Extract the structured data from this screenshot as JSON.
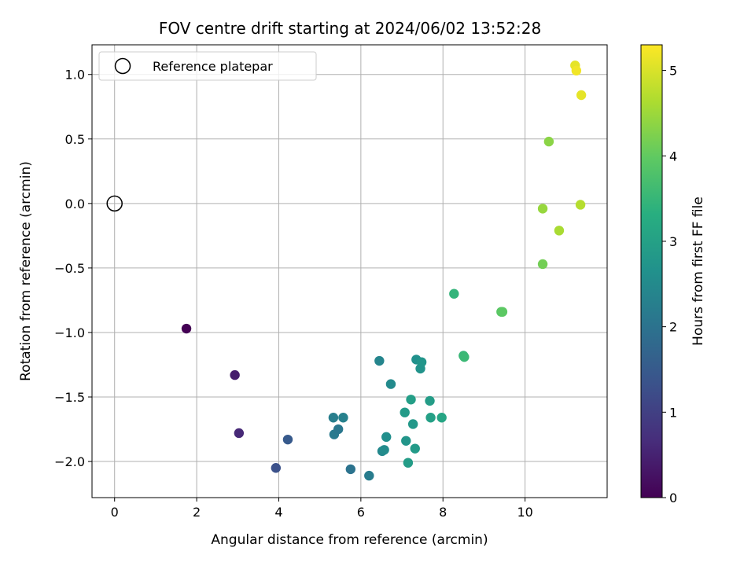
{
  "chart_data": {
    "type": "scatter",
    "title": "FOV centre drift starting at 2024/06/02 13:52:28",
    "xlabel": "Angular distance from reference (arcmin)",
    "ylabel": "Rotation from reference (arcmin)",
    "xlim": [
      -0.55,
      12
    ],
    "ylim": [
      -2.28,
      1.23
    ],
    "xticks": [
      0,
      2,
      4,
      6,
      8,
      10
    ],
    "xtick_labels": [
      "0",
      "2",
      "4",
      "6",
      "8",
      "10"
    ],
    "yticks": [
      -2.0,
      -1.5,
      -1.0,
      -0.5,
      0.0,
      0.5,
      1.0
    ],
    "ytick_labels": [
      "−2.0",
      "−1.5",
      "−1.0",
      "−0.5",
      "0.0",
      "0.5",
      "1.0"
    ],
    "grid": true,
    "legend": {
      "position": "top-left",
      "entries": [
        "Reference platepar"
      ]
    },
    "reference_point": {
      "x": 0.0,
      "y": 0.0
    },
    "colorbar": {
      "label": "Hours from first FF file",
      "range": [
        0,
        5.3
      ],
      "ticks": [
        0,
        1,
        2,
        3,
        4,
        5
      ],
      "tick_labels": [
        "0",
        "1",
        "2",
        "3",
        "4",
        "5"
      ],
      "colormap": "viridis"
    },
    "points": [
      {
        "x": 1.75,
        "y": -0.97,
        "c": 0.0
      },
      {
        "x": 2.93,
        "y": -1.33,
        "c": 0.4
      },
      {
        "x": 3.03,
        "y": -1.78,
        "c": 0.6
      },
      {
        "x": 3.93,
        "y": -2.05,
        "c": 1.3
      },
      {
        "x": 4.22,
        "y": -1.83,
        "c": 1.5
      },
      {
        "x": 5.33,
        "y": -1.66,
        "c": 2.25
      },
      {
        "x": 5.35,
        "y": -1.79,
        "c": 2.15
      },
      {
        "x": 5.45,
        "y": -1.75,
        "c": 2.1
      },
      {
        "x": 5.57,
        "y": -1.66,
        "c": 2.3
      },
      {
        "x": 5.75,
        "y": -2.06,
        "c": 2.0
      },
      {
        "x": 6.2,
        "y": -2.11,
        "c": 2.2
      },
      {
        "x": 6.45,
        "y": -1.22,
        "c": 2.4
      },
      {
        "x": 6.52,
        "y": -1.92,
        "c": 2.45
      },
      {
        "x": 6.57,
        "y": -1.91,
        "c": 2.55
      },
      {
        "x": 6.62,
        "y": -1.81,
        "c": 2.6
      },
      {
        "x": 6.73,
        "y": -1.4,
        "c": 2.5
      },
      {
        "x": 7.07,
        "y": -1.62,
        "c": 2.85
      },
      {
        "x": 7.1,
        "y": -1.84,
        "c": 2.75
      },
      {
        "x": 7.15,
        "y": -2.01,
        "c": 2.9
      },
      {
        "x": 7.22,
        "y": -1.52,
        "c": 2.95
      },
      {
        "x": 7.27,
        "y": -1.71,
        "c": 2.8
      },
      {
        "x": 7.32,
        "y": -1.9,
        "c": 2.85
      },
      {
        "x": 7.35,
        "y": -1.21,
        "c": 2.65
      },
      {
        "x": 7.45,
        "y": -1.28,
        "c": 2.7
      },
      {
        "x": 7.48,
        "y": -1.23,
        "c": 2.75
      },
      {
        "x": 7.68,
        "y": -1.53,
        "c": 2.9
      },
      {
        "x": 7.7,
        "y": -1.66,
        "c": 3.0
      },
      {
        "x": 7.97,
        "y": -1.66,
        "c": 3.1
      },
      {
        "x": 8.27,
        "y": -0.7,
        "c": 3.45
      },
      {
        "x": 8.5,
        "y": -1.18,
        "c": 3.5
      },
      {
        "x": 8.52,
        "y": -1.19,
        "c": 3.55
      },
      {
        "x": 9.42,
        "y": -0.84,
        "c": 3.9
      },
      {
        "x": 9.45,
        "y": -0.84,
        "c": 3.95
      },
      {
        "x": 10.43,
        "y": -0.47,
        "c": 4.15
      },
      {
        "x": 10.43,
        "y": -0.04,
        "c": 4.45
      },
      {
        "x": 10.58,
        "y": 0.48,
        "c": 4.35
      },
      {
        "x": 10.83,
        "y": -0.21,
        "c": 4.6
      },
      {
        "x": 11.22,
        "y": 1.07,
        "c": 5.1
      },
      {
        "x": 11.25,
        "y": 1.03,
        "c": 5.2
      },
      {
        "x": 11.35,
        "y": -0.01,
        "c": 4.7
      },
      {
        "x": 11.37,
        "y": 0.84,
        "c": 5.1
      }
    ]
  }
}
